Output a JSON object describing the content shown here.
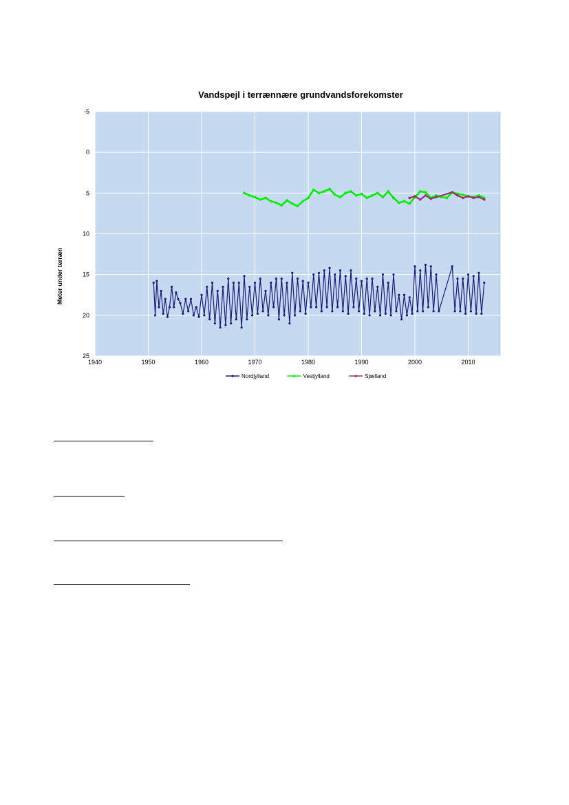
{
  "chart_data": {
    "type": "line",
    "title": "Vandspejl i terrænnære grundvandsforekomster",
    "ylabel": "Meter under terræn",
    "xlabel": "",
    "xlim": [
      1940,
      2016
    ],
    "ylim": [
      -5,
      25
    ],
    "y_inverted": true,
    "x_ticks": [
      1940,
      1950,
      1960,
      1970,
      1980,
      1990,
      2000,
      2010
    ],
    "y_ticks": [
      -5,
      0,
      5,
      10,
      15,
      20,
      25
    ],
    "grid": true,
    "legend_position": "bottom",
    "plot_background": "#c5d9f1",
    "series": [
      {
        "name": "Nordjylland",
        "color": "#1a1a7a",
        "x": [
          1951.0,
          1951.3,
          1951.6,
          1952.0,
          1952.4,
          1952.8,
          1953.2,
          1953.6,
          1954.0,
          1954.4,
          1954.8,
          1955.2,
          1955.6,
          1956.0,
          1956.5,
          1957.0,
          1957.5,
          1958.0,
          1958.5,
          1959.0,
          1959.5,
          1960.0,
          1960.5,
          1961.0,
          1961.5,
          1962.0,
          1962.5,
          1963.0,
          1963.5,
          1964.0,
          1964.5,
          1965.0,
          1965.5,
          1966.0,
          1966.5,
          1967.0,
          1967.5,
          1968.0,
          1968.5,
          1969.0,
          1969.5,
          1970.0,
          1970.5,
          1971.0,
          1971.5,
          1972.0,
          1972.5,
          1973.0,
          1973.5,
          1974.0,
          1974.5,
          1975.0,
          1975.5,
          1976.0,
          1976.5,
          1977.0,
          1977.5,
          1978.0,
          1978.5,
          1979.0,
          1979.5,
          1980.0,
          1980.5,
          1981.0,
          1981.5,
          1982.0,
          1982.5,
          1983.0,
          1983.5,
          1984.0,
          1984.5,
          1985.0,
          1985.5,
          1986.0,
          1986.5,
          1987.0,
          1987.5,
          1988.0,
          1988.5,
          1989.0,
          1989.5,
          1990.0,
          1990.5,
          1991.0,
          1991.5,
          1992.0,
          1992.5,
          1993.0,
          1993.5,
          1994.0,
          1994.5,
          1995.0,
          1995.5,
          1996.0,
          1996.5,
          1997.0,
          1997.5,
          1998.0,
          1998.5,
          1999.0,
          1999.5,
          2000.0,
          2000.5,
          2001.0,
          2001.5,
          2002.0,
          2002.5,
          2003.0,
          2003.5,
          2004.0,
          2004.5,
          2007.0,
          2007.5,
          2008.0,
          2008.5,
          2009.0,
          2009.5,
          2010.0,
          2010.5,
          2011.0,
          2011.5,
          2012.0,
          2012.5,
          2013.0
        ],
        "y": [
          16.0,
          20.0,
          15.8,
          19.0,
          17.0,
          19.8,
          18.0,
          20.2,
          19.0,
          16.5,
          19.0,
          17.2,
          18.0,
          18.5,
          19.8,
          18.0,
          19.5,
          18.0,
          20.0,
          19.0,
          20.2,
          17.5,
          20.0,
          16.5,
          20.5,
          16.0,
          21.0,
          17.0,
          21.5,
          16.5,
          21.2,
          15.5,
          21.0,
          16.0,
          20.5,
          16.0,
          21.5,
          15.2,
          20.5,
          16.5,
          20.0,
          16.0,
          19.8,
          15.5,
          19.5,
          17.0,
          20.0,
          16.0,
          19.0,
          15.5,
          20.5,
          15.5,
          20.0,
          16.0,
          21.0,
          14.8,
          20.0,
          15.5,
          19.5,
          15.8,
          19.8,
          16.0,
          19.0,
          15.0,
          19.0,
          14.8,
          19.5,
          14.5,
          19.0,
          14.2,
          19.5,
          15.0,
          19.0,
          14.5,
          19.5,
          15.2,
          19.8,
          14.5,
          19.0,
          15.5,
          19.5,
          15.8,
          19.8,
          15.5,
          20.0,
          15.5,
          19.5,
          16.5,
          20.0,
          15.0,
          19.8,
          16.0,
          20.0,
          15.0,
          19.5,
          17.5,
          20.5,
          17.5,
          20.0,
          17.8,
          19.8,
          14.0,
          19.5,
          14.5,
          19.5,
          13.8,
          19.0,
          14.0,
          19.5,
          15.0,
          19.5,
          14.0,
          19.5,
          15.5,
          19.5,
          15.5,
          19.8,
          15.0,
          19.5,
          15.2,
          19.8,
          14.8,
          19.8,
          16.0
        ]
      },
      {
        "name": "Vestjylland",
        "color": "#00ee00",
        "x": [
          1968.0,
          1969.0,
          1970.0,
          1971.0,
          1972.0,
          1973.0,
          1974.0,
          1975.0,
          1976.0,
          1977.0,
          1978.0,
          1979.0,
          1980.0,
          1981.0,
          1982.0,
          1983.0,
          1984.0,
          1985.0,
          1986.0,
          1987.0,
          1988.0,
          1989.0,
          1990.0,
          1991.0,
          1992.0,
          1993.0,
          1994.0,
          1995.0,
          1996.0,
          1997.0,
          1998.0,
          1999.0,
          2000.0,
          2001.0,
          2002.0,
          2003.0,
          2004.0,
          2005.0,
          2006.0,
          2007.0,
          2008.0,
          2009.0,
          2010.0,
          2011.0,
          2012.0,
          2013.0
        ],
        "y": [
          5.0,
          5.3,
          5.5,
          5.8,
          5.6,
          6.0,
          6.2,
          6.5,
          5.9,
          6.3,
          6.6,
          6.0,
          5.6,
          4.6,
          5.0,
          4.8,
          4.5,
          5.2,
          5.5,
          5.0,
          4.8,
          5.3,
          5.1,
          5.6,
          5.3,
          5.0,
          5.5,
          4.8,
          5.6,
          6.2,
          6.0,
          6.3,
          5.5,
          4.8,
          4.9,
          5.6,
          5.3,
          5.5,
          5.6,
          4.9,
          5.1,
          5.2,
          5.4,
          5.5,
          5.3,
          5.6
        ]
      },
      {
        "name": "Sjælland",
        "color": "#993366",
        "x": [
          1999.0,
          2000.0,
          2001.0,
          2002.0,
          2003.0,
          2004.0,
          2007.0,
          2008.0,
          2009.0,
          2010.0,
          2011.0,
          2012.0,
          2013.0
        ],
        "y": [
          5.6,
          5.4,
          5.8,
          5.3,
          5.7,
          5.5,
          4.9,
          5.3,
          5.6,
          5.4,
          5.6,
          5.5,
          5.8
        ]
      }
    ]
  },
  "lines": [
    {
      "name": "underline-1"
    },
    {
      "name": "underline-2"
    },
    {
      "name": "underline-3"
    },
    {
      "name": "underline-4"
    }
  ]
}
